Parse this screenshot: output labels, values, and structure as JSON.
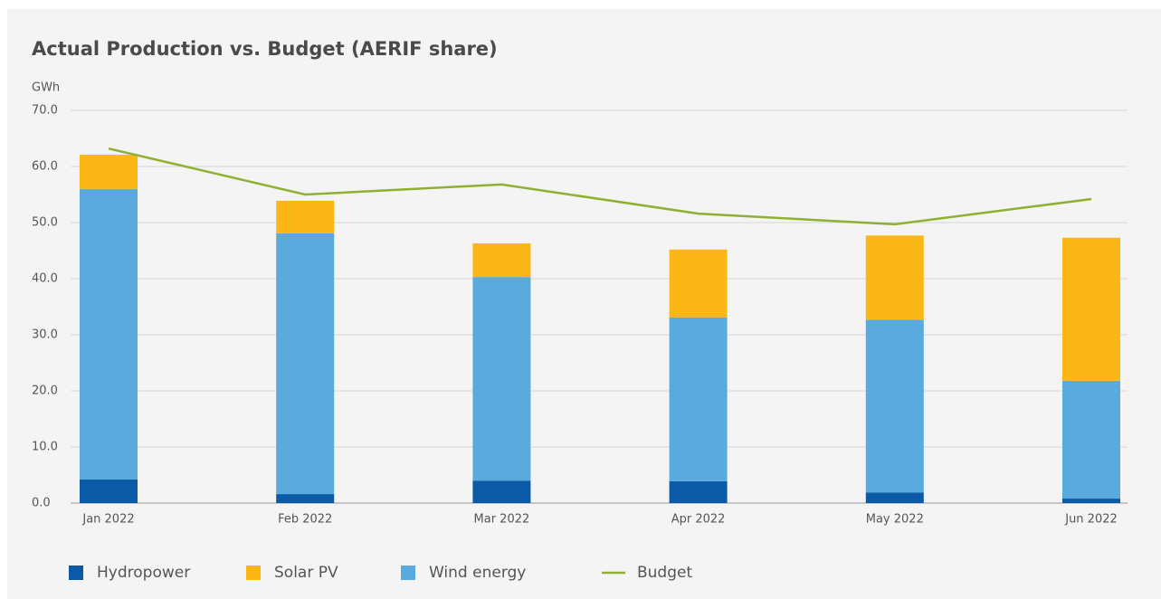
{
  "chart_data": {
    "type": "bar",
    "stacked": true,
    "title": "Actual Production vs. Budget (AERIF share)",
    "y_label": "GWh",
    "categories": [
      "Jan 2022",
      "Feb 2022",
      "Mar 2022",
      "Apr 2022",
      "May 2022",
      "Jun 2022"
    ],
    "series": [
      {
        "name": "Hydropower",
        "color": "#0a5aa8",
        "values": [
          4.2,
          1.6,
          4.0,
          3.9,
          1.9,
          0.8
        ]
      },
      {
        "name": "Solar PV",
        "color": "#fbb716",
        "values": [
          6.1,
          5.8,
          6.0,
          12.1,
          15.0,
          25.5
        ]
      },
      {
        "name": "Wind energy",
        "color": "#5aaade",
        "values": [
          51.8,
          46.5,
          36.3,
          29.2,
          30.8,
          21.0
        ]
      },
      {
        "name": "Budget",
        "color": "#8fb030",
        "type": "line",
        "values": [
          63.2,
          55.0,
          56.8,
          51.6,
          49.7,
          54.2
        ]
      }
    ],
    "stack_order": [
      0,
      2,
      1
    ],
    "ylim": [
      0,
      70
    ],
    "yticks": [
      {
        "value": 0,
        "label": "0.0"
      },
      {
        "value": 10,
        "label": "10.0"
      },
      {
        "value": 20,
        "label": "20.0"
      },
      {
        "value": 30,
        "label": "30.0"
      },
      {
        "value": 40,
        "label": "40.0"
      },
      {
        "value": 50,
        "label": "50.0"
      },
      {
        "value": 60,
        "label": "60.0"
      },
      {
        "value": 70,
        "label": "70.0"
      }
    ],
    "grid": true,
    "legend": "bottom"
  }
}
